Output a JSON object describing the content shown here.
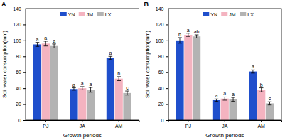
{
  "chart_data": [
    {
      "type": "bar",
      "title": "A",
      "x_label": "Growth periods",
      "y_label": "Soil water consumption(mm)",
      "categories": [
        "PJ",
        "JA",
        "AM"
      ],
      "series": [
        {
          "name": "YN",
          "color": "#1f4fcc",
          "values": [
            95,
            39,
            78
          ],
          "errors": [
            2.5,
            1.5,
            2
          ],
          "letters": [
            "a",
            "a",
            "a"
          ]
        },
        {
          "name": "JM",
          "color": "#f4b3c0",
          "values": [
            96,
            40,
            52
          ],
          "errors": [
            3,
            2,
            2.5
          ],
          "letters": [
            "a",
            "a",
            "b"
          ]
        },
        {
          "name": "LX",
          "color": "#b3b3b3",
          "values": [
            93,
            38,
            34
          ],
          "errors": [
            2.5,
            3,
            2.5
          ],
          "letters": [
            "a",
            "a",
            "c"
          ]
        }
      ],
      "ylim": [
        0,
        140
      ],
      "yticks": [
        0,
        20,
        40,
        60,
        80,
        100,
        120,
        140
      ],
      "legend": "upper center"
    },
    {
      "type": "bar",
      "title": "B",
      "x_label": "Growth periods",
      "y_label": "Soil water consumption(mm)",
      "categories": [
        "PJ",
        "JA",
        "AM"
      ],
      "series": [
        {
          "name": "YN",
          "color": "#1f4fcc",
          "values": [
            100,
            25,
            61
          ],
          "errors": [
            3.5,
            1.5,
            2
          ],
          "letters": [
            "b",
            "a",
            "a"
          ]
        },
        {
          "name": "JM",
          "color": "#f4b3c0",
          "values": [
            107,
            27,
            38
          ],
          "errors": [
            2,
            2,
            2.5
          ],
          "letters": [
            "a",
            "a",
            "b"
          ]
        },
        {
          "name": "LX",
          "color": "#b3b3b3",
          "values": [
            105,
            26,
            21
          ],
          "errors": [
            2,
            2.5,
            2
          ],
          "letters": [
            "ab",
            "a",
            "c"
          ]
        }
      ],
      "ylim": [
        0,
        140
      ],
      "yticks": [
        0,
        20,
        40,
        60,
        80,
        100,
        120,
        140
      ],
      "legend": "upper center"
    }
  ]
}
